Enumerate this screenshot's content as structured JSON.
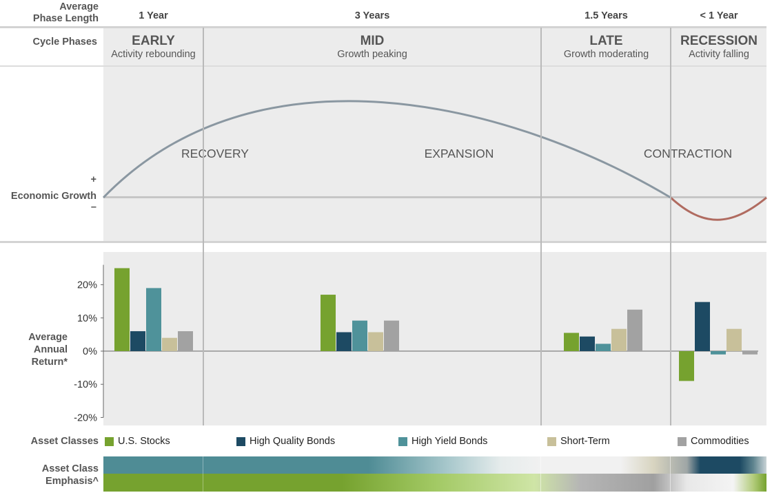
{
  "header": {
    "row_label_line1": "Average",
    "row_label_line2": "Phase Length",
    "phase_lengths": [
      "1 Year",
      "3 Years",
      "1.5 Years",
      "< 1 Year"
    ],
    "cycle_phases_label": "Cycle Phases"
  },
  "phases": [
    {
      "name": "EARLY",
      "sub": "Activity rebounding"
    },
    {
      "name": "MID",
      "sub": "Growth peaking"
    },
    {
      "name": "LATE",
      "sub": "Growth moderating"
    },
    {
      "name": "RECESSION",
      "sub": "Activity falling"
    }
  ],
  "growth_panel": {
    "plus": "+",
    "label": "Economic Growth",
    "minus": "–",
    "stages": [
      "RECOVERY",
      "EXPANSION",
      "CONTRACTION"
    ]
  },
  "returns_panel": {
    "ylabel_lines": [
      "Average",
      "Annual",
      "Return*"
    ]
  },
  "legend": {
    "label": "Asset Classes",
    "items": [
      {
        "name": "U.S. Stocks",
        "color": "#76a22f"
      },
      {
        "name": "High Quality Bonds",
        "color": "#1d4a63"
      },
      {
        "name": "High Yield Bonds",
        "color": "#4f929a"
      },
      {
        "name": "Short-Term",
        "color": "#c8c09a"
      },
      {
        "name": "Commodities",
        "color": "#a2a2a2"
      }
    ]
  },
  "emphasis": {
    "label_line1": "Asset Class",
    "label_line2": "Emphasis^"
  },
  "chart_data": {
    "type": "bar",
    "categories": [
      "EARLY",
      "MID",
      "LATE",
      "RECESSION"
    ],
    "series": [
      {
        "name": "U.S. Stocks",
        "color": "#76a22f",
        "values": [
          25,
          17,
          5.5,
          -9
        ]
      },
      {
        "name": "High Quality Bonds",
        "color": "#1d4a63",
        "values": [
          6,
          5.7,
          4.4,
          14.8
        ]
      },
      {
        "name": "High Yield Bonds",
        "color": "#4f929a",
        "values": [
          19,
          9.2,
          2.2,
          -1
        ]
      },
      {
        "name": "Short-Term",
        "color": "#c8c09a",
        "values": [
          4,
          5.7,
          6.7,
          6.7
        ]
      },
      {
        "name": "Commodities",
        "color": "#a2a2a2",
        "values": [
          6,
          9.2,
          12.5,
          -1
        ]
      }
    ],
    "ylim": [
      -20,
      26
    ],
    "yticks": [
      "20%",
      "10%",
      "0%",
      "-10%",
      "-20%"
    ],
    "ytick_values": [
      20,
      10,
      0,
      -10,
      -20
    ]
  }
}
